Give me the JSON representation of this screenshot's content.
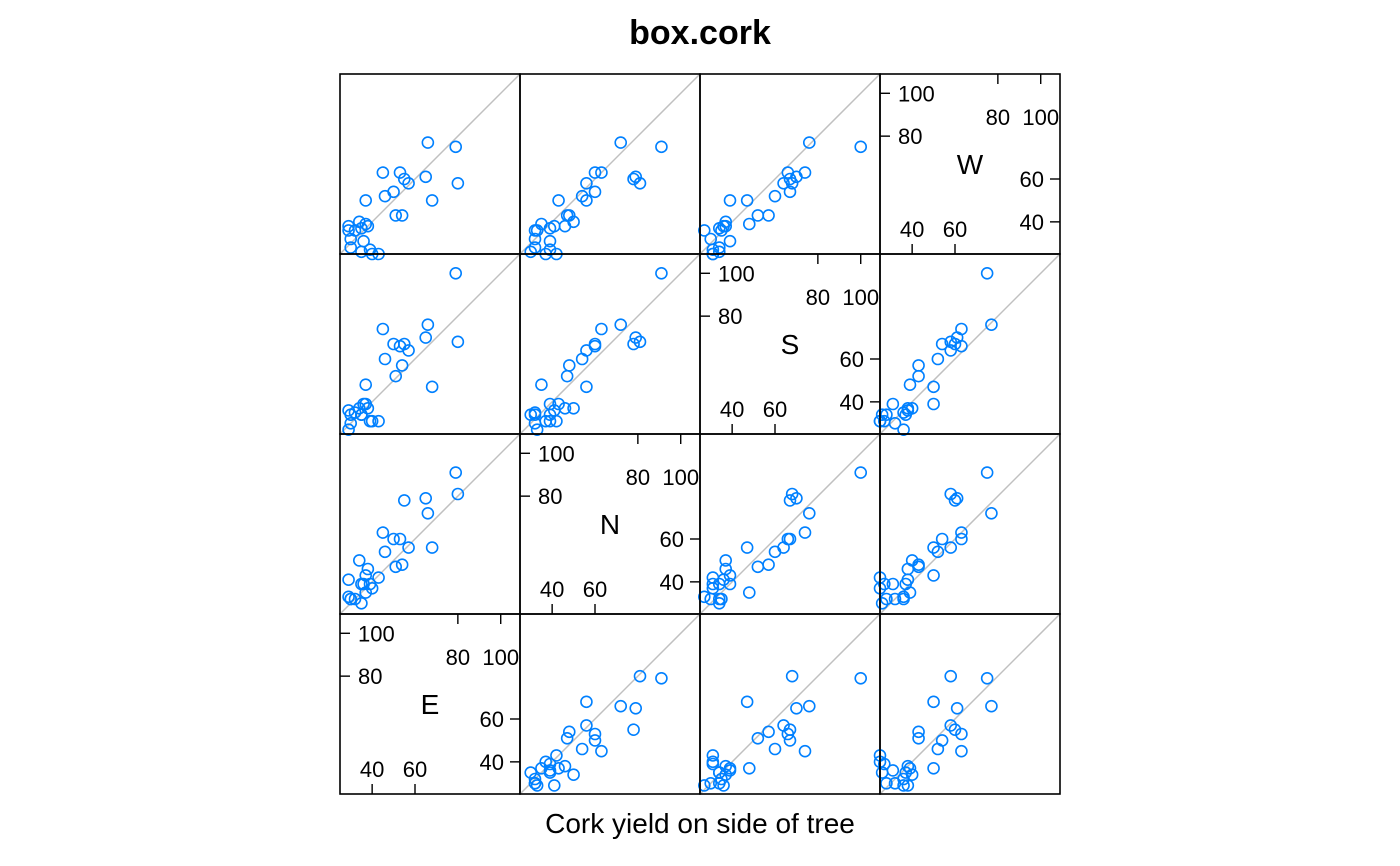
{
  "chart_data": {
    "type": "scatter",
    "subtype": "scatterplot-matrix",
    "title": "box.cork",
    "xlabel": "Cork yield on side of tree",
    "variables": [
      "E",
      "N",
      "S",
      "W"
    ],
    "diagonal_tick_labels": [
      "40",
      "60",
      "80",
      "100"
    ],
    "axis_range": [
      25,
      109
    ],
    "reference_line": "y = x",
    "grid": false,
    "colors": {
      "points": "#0080ff",
      "reference_line": "#c0c0c0",
      "border": "#000000"
    },
    "observations": {
      "N": [
        72,
        60,
        56,
        41,
        32,
        30,
        39,
        42,
        37,
        33,
        32,
        63,
        54,
        47,
        91,
        56,
        79,
        81,
        78,
        46,
        39,
        32,
        60,
        35,
        39,
        50,
        43,
        48
      ],
      "E": [
        66,
        53,
        57,
        29,
        32,
        35,
        39,
        43,
        40,
        29,
        30,
        45,
        46,
        51,
        79,
        68,
        65,
        80,
        55,
        38,
        35,
        30,
        50,
        37,
        36,
        34,
        37,
        54
      ],
      "S": [
        76,
        66,
        64,
        36,
        35,
        34,
        31,
        31,
        31,
        27,
        34,
        74,
        60,
        52,
        100,
        47,
        70,
        68,
        67,
        37,
        34,
        30,
        67,
        48,
        39,
        37,
        39,
        57
      ],
      "W": [
        77,
        63,
        58,
        38,
        36,
        26,
        27,
        25,
        25,
        36,
        28,
        63,
        52,
        43,
        75,
        50,
        61,
        58,
        60,
        38,
        37,
        32,
        54,
        39,
        31,
        40,
        50,
        43
      ]
    }
  }
}
